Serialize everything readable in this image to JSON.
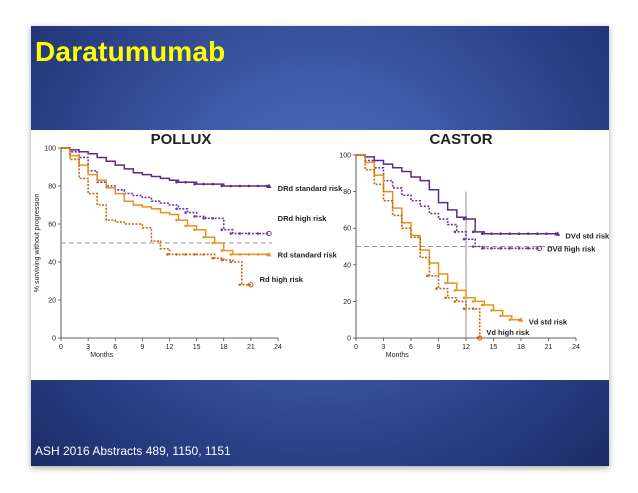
{
  "slide": {
    "title": "Daratumumab",
    "footer": "ASH 2016 Abstracts 489, 1150, 1151"
  },
  "colors": {
    "dark_purple": "#5c2a8a",
    "purple": "#6b3aa0",
    "orange": "#e8901e",
    "dark_orange": "#c66a0c",
    "reference": "#999999",
    "title_yellow": "#ffff00"
  },
  "chart_data": [
    {
      "type": "line",
      "title": "POLLUX",
      "xlabel": "Months",
      "ylabel": "% surviving without progression",
      "xlim": [
        0,
        24
      ],
      "ylim": [
        0,
        100
      ],
      "xticks": [
        0,
        3,
        6,
        9,
        12,
        15,
        18,
        21,
        24
      ],
      "yticks": [
        0,
        20,
        40,
        60,
        80,
        100
      ],
      "reference_line": 50,
      "grid": false,
      "series": [
        {
          "name": "DRd standard risk",
          "color": "#5c2a8a",
          "dash": "solid",
          "x": [
            0,
            1,
            2,
            3,
            4,
            5,
            6,
            7,
            8,
            9,
            10,
            11,
            12,
            13,
            14,
            15,
            16,
            17,
            18,
            19,
            20,
            21,
            22,
            23
          ],
          "y": [
            100,
            99,
            98,
            97,
            95,
            93,
            91,
            89,
            87,
            86,
            85,
            84,
            83,
            82,
            82,
            81,
            81,
            81,
            80,
            80,
            80,
            80,
            80,
            80
          ]
        },
        {
          "name": "DRd high risk",
          "color": "#6b3aa0",
          "dash": "dotted",
          "x": [
            0,
            1,
            2,
            3,
            4,
            5,
            6,
            7,
            8,
            9,
            10,
            11,
            12,
            13,
            14,
            15,
            16,
            17,
            18,
            19,
            20,
            21,
            22,
            23
          ],
          "y": [
            100,
            98,
            95,
            88,
            82,
            80,
            78,
            76,
            75,
            74,
            72,
            71,
            70,
            68,
            66,
            64,
            63,
            63,
            57,
            55,
            55,
            55,
            55,
            55
          ]
        },
        {
          "name": "Rd standard risk",
          "color": "#e8901e",
          "dash": "solid",
          "x": [
            0,
            1,
            2,
            3,
            4,
            5,
            6,
            7,
            8,
            9,
            10,
            11,
            12,
            13,
            14,
            15,
            16,
            17,
            18,
            19,
            20,
            21,
            22,
            23
          ],
          "y": [
            100,
            96,
            91,
            86,
            83,
            79,
            76,
            72,
            70,
            69,
            68,
            66,
            65,
            62,
            59,
            57,
            53,
            50,
            46,
            44,
            44,
            44,
            44,
            44
          ]
        },
        {
          "name": "Rd high risk",
          "color": "#c66a0c",
          "dash": "dotted",
          "x": [
            0,
            1,
            2,
            3,
            4,
            5,
            6,
            7,
            8,
            9,
            10,
            11,
            12,
            13,
            14,
            15,
            16,
            17,
            18,
            19,
            20,
            21
          ],
          "y": [
            100,
            94,
            84,
            76,
            70,
            62,
            61,
            60,
            60,
            58,
            51,
            47,
            44,
            44,
            44,
            44,
            44,
            42,
            41,
            40,
            28,
            28
          ]
        }
      ]
    },
    {
      "type": "line",
      "title": "CASTOR",
      "xlabel": "Months",
      "ylabel": "",
      "xlim": [
        0,
        24
      ],
      "ylim": [
        0,
        100
      ],
      "xticks": [
        0,
        3,
        6,
        9,
        12,
        15,
        18,
        21,
        24
      ],
      "yticks": [
        0,
        20,
        40,
        60,
        80,
        100
      ],
      "reference_line": 50,
      "vertical_marker": 12,
      "grid": false,
      "series": [
        {
          "name": "DVd std risk",
          "color": "#5c2a8a",
          "dash": "solid",
          "x": [
            0,
            1,
            2,
            3,
            4,
            5,
            6,
            7,
            8,
            9,
            10,
            11,
            12,
            13,
            14,
            15,
            16,
            17,
            18,
            19,
            20,
            21,
            22
          ],
          "y": [
            100,
            99,
            97,
            95,
            93,
            91,
            88,
            86,
            81,
            74,
            70,
            66,
            65,
            58,
            57,
            57,
            57,
            57,
            57,
            57,
            57,
            57,
            57
          ]
        },
        {
          "name": "DVd high risk",
          "color": "#6b3aa0",
          "dash": "dotted",
          "x": [
            0,
            1,
            2,
            3,
            4,
            5,
            6,
            7,
            8,
            9,
            10,
            11,
            12,
            13,
            14,
            15,
            16,
            17,
            18,
            19,
            20
          ],
          "y": [
            100,
            97,
            93,
            86,
            82,
            78,
            75,
            72,
            68,
            65,
            62,
            58,
            54,
            50,
            49,
            49,
            49,
            49,
            49,
            49,
            49
          ]
        },
        {
          "name": "Vd std risk",
          "color": "#e8901e",
          "dash": "solid",
          "x": [
            0,
            1,
            2,
            3,
            4,
            5,
            6,
            7,
            8,
            9,
            10,
            11,
            12,
            13,
            14,
            15,
            16,
            17,
            18
          ],
          "y": [
            100,
            96,
            89,
            80,
            71,
            63,
            56,
            48,
            41,
            35,
            30,
            26,
            22,
            20,
            18,
            15,
            12,
            10,
            10
          ]
        },
        {
          "name": "Vd high risk",
          "color": "#c66a0c",
          "dash": "dotted",
          "x": [
            0,
            1,
            2,
            3,
            4,
            5,
            6,
            7,
            8,
            9,
            10,
            11,
            12,
            13,
            13.5
          ],
          "y": [
            100,
            92,
            84,
            75,
            67,
            60,
            55,
            44,
            34,
            27,
            22,
            20,
            16,
            16,
            0
          ]
        }
      ]
    }
  ]
}
